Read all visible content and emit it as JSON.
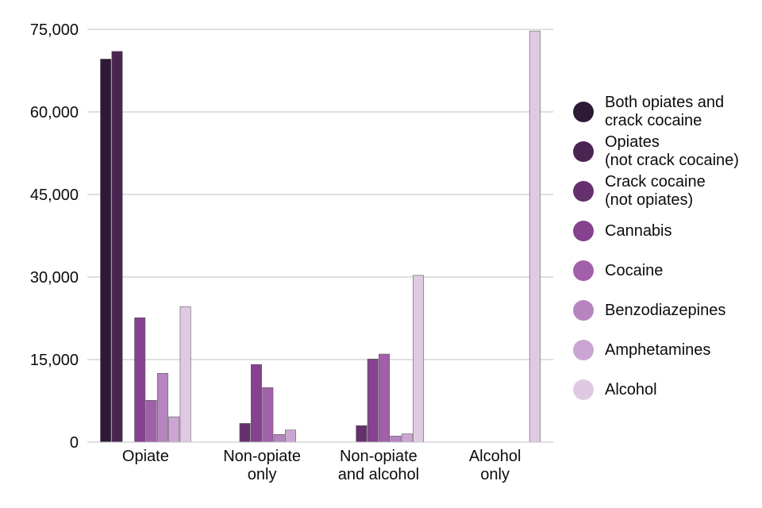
{
  "chart_data": {
    "type": "bar",
    "categories": [
      "Opiate",
      "Non-opiate\nonly",
      "Non-opiate\nand alcohol",
      "Alcohol\nonly"
    ],
    "ylim": [
      0,
      75000
    ],
    "yticks": [
      0,
      15000,
      30000,
      45000,
      60000,
      75000
    ],
    "ytick_labels": [
      "0",
      "15,000",
      "30,000",
      "45,000",
      "60,000",
      "75,000"
    ],
    "grid": true,
    "legend_position": "right",
    "series": [
      {
        "name": "Both opiates and\ncrack cocaine",
        "color": "#2e1a38",
        "values": [
          69600,
          0,
          0,
          0
        ]
      },
      {
        "name": "Opiates\n(not crack cocaine)",
        "color": "#4a2552",
        "values": [
          71000,
          0,
          0,
          0
        ]
      },
      {
        "name": "Crack cocaine\n(not opiates)",
        "color": "#66306e",
        "values": [
          0,
          3400,
          3000,
          0
        ]
      },
      {
        "name": "Cannabis",
        "color": "#86418f",
        "values": [
          22600,
          14100,
          15100,
          0
        ]
      },
      {
        "name": "Cocaine",
        "color": "#a360aa",
        "values": [
          7600,
          9900,
          16000,
          0
        ]
      },
      {
        "name": "Benzodiazepines",
        "color": "#b685c0",
        "values": [
          12500,
          1400,
          1100,
          0
        ]
      },
      {
        "name": "Amphetamines",
        "color": "#cba6d3",
        "values": [
          4600,
          2200,
          1500,
          0
        ]
      },
      {
        "name": "Alcohol",
        "color": "#e0cae3",
        "values": [
          24600,
          0,
          30300,
          74700
        ]
      }
    ]
  }
}
